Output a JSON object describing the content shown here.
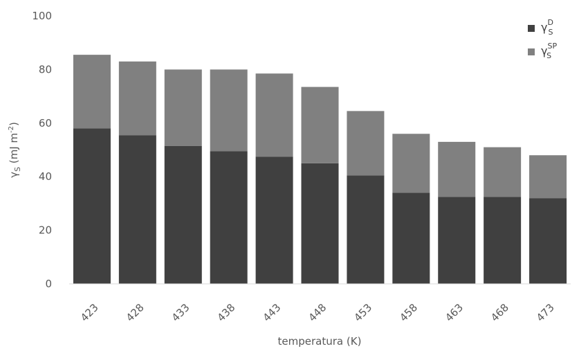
{
  "chart_data": {
    "type": "bar",
    "stacked": true,
    "categories": [
      "423",
      "428",
      "433",
      "438",
      "443",
      "448",
      "453",
      "458",
      "463",
      "468",
      "473"
    ],
    "series": [
      {
        "name": "γSD",
        "name_main": "γ",
        "name_sup": "D",
        "name_sub": "S",
        "color": "#404040",
        "values": [
          58,
          55.5,
          51.5,
          49.5,
          47.5,
          45,
          40.5,
          34,
          32.5,
          32.5,
          32
        ]
      },
      {
        "name": "γSSP",
        "name_main": "γ",
        "name_sup": "SP",
        "name_sub": "S",
        "color": "#808080",
        "values": [
          27.5,
          27.5,
          28.5,
          30.5,
          31,
          28.5,
          24,
          22,
          20.5,
          18.5,
          16
        ]
      }
    ],
    "xlabel": "temperatura (K)",
    "ylabel": "γS (mJ m-2)",
    "ylabel_parts": {
      "main": "γ",
      "sub": "S",
      "mid": " (mJ m",
      "sup": "-2",
      "end": ")"
    },
    "ylim": [
      0,
      100
    ],
    "yticks": [
      0,
      20,
      40,
      60,
      80,
      100
    ],
    "grid": false,
    "legend_position": "top-right"
  }
}
